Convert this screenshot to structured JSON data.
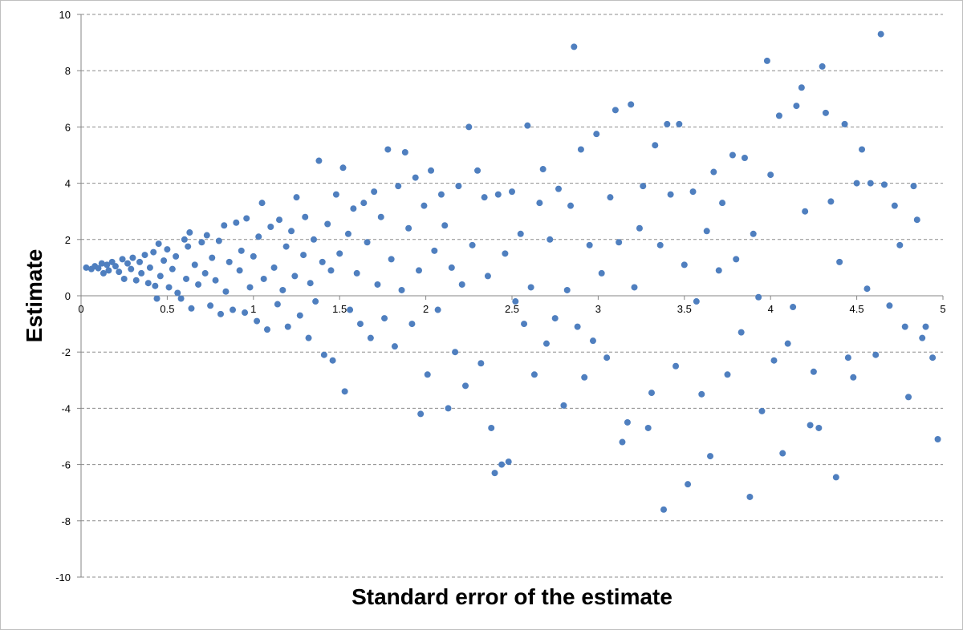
{
  "chart_data": {
    "type": "scatter",
    "title": "",
    "xlabel": "Standard error of the estimate",
    "ylabel": "Estimate",
    "xlim": [
      0,
      5
    ],
    "ylim": [
      -10,
      10
    ],
    "x_ticks": [
      0,
      0.5,
      1,
      1.5,
      2,
      2.5,
      3,
      3.5,
      4,
      4.5,
      5
    ],
    "y_ticks": [
      -10,
      -8,
      -6,
      -4,
      -2,
      0,
      2,
      4,
      6,
      8,
      10
    ],
    "grid": "horizontal dashed",
    "legend": "none",
    "colors": {
      "marker": "#4f7fbf",
      "grid": "#8c8c8c",
      "axis": "#868686"
    },
    "series": [
      {
        "marker": "circle",
        "points": [
          [
            0.03,
            1.0
          ],
          [
            0.06,
            0.95
          ],
          [
            0.08,
            1.05
          ],
          [
            0.1,
            0.98
          ],
          [
            0.12,
            1.15
          ],
          [
            0.13,
            0.8
          ],
          [
            0.15,
            1.1
          ],
          [
            0.16,
            0.9
          ],
          [
            0.18,
            1.2
          ],
          [
            0.2,
            1.05
          ],
          [
            0.22,
            0.85
          ],
          [
            0.24,
            1.3
          ],
          [
            0.25,
            0.6
          ],
          [
            0.27,
            1.15
          ],
          [
            0.29,
            0.95
          ],
          [
            0.3,
            1.35
          ],
          [
            0.32,
            0.55
          ],
          [
            0.34,
            1.2
          ],
          [
            0.35,
            0.8
          ],
          [
            0.37,
            1.45
          ],
          [
            0.39,
            0.45
          ],
          [
            0.4,
            1.0
          ],
          [
            0.42,
            1.55
          ],
          [
            0.43,
            0.35
          ],
          [
            0.44,
            -0.1
          ],
          [
            0.45,
            1.85
          ],
          [
            0.46,
            0.7
          ],
          [
            0.48,
            1.25
          ],
          [
            0.5,
            1.65
          ],
          [
            0.51,
            0.3
          ],
          [
            0.53,
            0.95
          ],
          [
            0.55,
            1.4
          ],
          [
            0.56,
            0.1
          ],
          [
            0.58,
            -0.1
          ],
          [
            0.6,
            2.0
          ],
          [
            0.61,
            0.6
          ],
          [
            0.62,
            1.75
          ],
          [
            0.63,
            2.25
          ],
          [
            0.64,
            -0.45
          ],
          [
            0.66,
            1.1
          ],
          [
            0.68,
            0.4
          ],
          [
            0.7,
            1.9
          ],
          [
            0.72,
            0.8
          ],
          [
            0.73,
            2.15
          ],
          [
            0.75,
            -0.35
          ],
          [
            0.76,
            1.35
          ],
          [
            0.78,
            0.55
          ],
          [
            0.8,
            1.95
          ],
          [
            0.81,
            -0.65
          ],
          [
            0.83,
            2.5
          ],
          [
            0.84,
            0.15
          ],
          [
            0.86,
            1.2
          ],
          [
            0.88,
            -0.5
          ],
          [
            0.9,
            2.6
          ],
          [
            0.92,
            0.9
          ],
          [
            0.93,
            1.6
          ],
          [
            0.95,
            -0.6
          ],
          [
            0.96,
            2.75
          ],
          [
            0.98,
            0.3
          ],
          [
            1.0,
            1.4
          ],
          [
            1.02,
            -0.9
          ],
          [
            1.03,
            2.1
          ],
          [
            1.05,
            3.3
          ],
          [
            1.06,
            0.6
          ],
          [
            1.08,
            -1.2
          ],
          [
            1.1,
            2.45
          ],
          [
            1.12,
            1.0
          ],
          [
            1.14,
            -0.3
          ],
          [
            1.15,
            2.7
          ],
          [
            1.17,
            0.2
          ],
          [
            1.19,
            1.75
          ],
          [
            1.2,
            -1.1
          ],
          [
            1.22,
            2.3
          ],
          [
            1.24,
            0.7
          ],
          [
            1.25,
            3.5
          ],
          [
            1.27,
            -0.7
          ],
          [
            1.29,
            1.45
          ],
          [
            1.3,
            2.8
          ],
          [
            1.32,
            -1.5
          ],
          [
            1.33,
            0.45
          ],
          [
            1.35,
            2.0
          ],
          [
            1.36,
            -0.2
          ],
          [
            1.38,
            4.8
          ],
          [
            1.4,
            1.2
          ],
          [
            1.41,
            -2.1
          ],
          [
            1.43,
            2.55
          ],
          [
            1.45,
            0.9
          ],
          [
            1.46,
            -2.3
          ],
          [
            1.48,
            3.6
          ],
          [
            1.5,
            1.5
          ],
          [
            1.52,
            4.55
          ],
          [
            1.53,
            -3.4
          ],
          [
            1.55,
            2.2
          ],
          [
            1.56,
            -0.5
          ],
          [
            1.58,
            3.1
          ],
          [
            1.6,
            0.8
          ],
          [
            1.62,
            -1.0
          ],
          [
            1.64,
            3.3
          ],
          [
            1.66,
            1.9
          ],
          [
            1.68,
            -1.5
          ],
          [
            1.7,
            3.7
          ],
          [
            1.72,
            0.4
          ],
          [
            1.74,
            2.8
          ],
          [
            1.76,
            -0.8
          ],
          [
            1.78,
            5.2
          ],
          [
            1.8,
            1.3
          ],
          [
            1.82,
            -1.8
          ],
          [
            1.84,
            3.9
          ],
          [
            1.86,
            0.2
          ],
          [
            1.88,
            5.1
          ],
          [
            1.9,
            2.4
          ],
          [
            1.92,
            -1.0
          ],
          [
            1.94,
            4.2
          ],
          [
            1.96,
            0.9
          ],
          [
            1.97,
            -4.2
          ],
          [
            1.99,
            3.2
          ],
          [
            2.01,
            -2.8
          ],
          [
            2.03,
            4.45
          ],
          [
            2.05,
            1.6
          ],
          [
            2.07,
            -0.5
          ],
          [
            2.09,
            3.6
          ],
          [
            2.11,
            2.5
          ],
          [
            2.13,
            -4.0
          ],
          [
            2.15,
            1.0
          ],
          [
            2.17,
            -2.0
          ],
          [
            2.19,
            3.9
          ],
          [
            2.21,
            0.4
          ],
          [
            2.23,
            -3.2
          ],
          [
            2.25,
            6.0
          ],
          [
            2.27,
            1.8
          ],
          [
            2.3,
            4.45
          ],
          [
            2.32,
            -2.4
          ],
          [
            2.34,
            3.5
          ],
          [
            2.36,
            0.7
          ],
          [
            2.38,
            -4.7
          ],
          [
            2.4,
            -6.3
          ],
          [
            2.42,
            3.6
          ],
          [
            2.44,
            -6.0
          ],
          [
            2.46,
            1.5
          ],
          [
            2.48,
            -5.9
          ],
          [
            2.5,
            3.7
          ],
          [
            2.52,
            -0.2
          ],
          [
            2.55,
            2.2
          ],
          [
            2.57,
            -1.0
          ],
          [
            2.59,
            6.05
          ],
          [
            2.61,
            0.3
          ],
          [
            2.63,
            -2.8
          ],
          [
            2.66,
            3.3
          ],
          [
            2.68,
            4.5
          ],
          [
            2.7,
            -1.7
          ],
          [
            2.72,
            2.0
          ],
          [
            2.75,
            -0.8
          ],
          [
            2.77,
            3.8
          ],
          [
            2.8,
            -3.9
          ],
          [
            2.82,
            0.2
          ],
          [
            2.84,
            3.2
          ],
          [
            2.86,
            8.85
          ],
          [
            2.88,
            -1.1
          ],
          [
            2.9,
            5.2
          ],
          [
            2.92,
            -2.9
          ],
          [
            2.95,
            1.8
          ],
          [
            2.97,
            -1.6
          ],
          [
            2.99,
            5.75
          ],
          [
            3.02,
            0.8
          ],
          [
            3.05,
            -2.2
          ],
          [
            3.07,
            3.5
          ],
          [
            3.1,
            6.6
          ],
          [
            3.12,
            1.9
          ],
          [
            3.14,
            -5.2
          ],
          [
            3.17,
            -4.5
          ],
          [
            3.19,
            6.8
          ],
          [
            3.21,
            0.3
          ],
          [
            3.24,
            2.4
          ],
          [
            3.26,
            3.9
          ],
          [
            3.29,
            -4.7
          ],
          [
            3.31,
            -3.45
          ],
          [
            3.33,
            5.35
          ],
          [
            3.36,
            1.8
          ],
          [
            3.38,
            -7.6
          ],
          [
            3.4,
            6.1
          ],
          [
            3.42,
            3.6
          ],
          [
            3.45,
            -2.5
          ],
          [
            3.47,
            6.1
          ],
          [
            3.5,
            1.1
          ],
          [
            3.52,
            -6.7
          ],
          [
            3.55,
            3.7
          ],
          [
            3.57,
            -0.2
          ],
          [
            3.6,
            -3.5
          ],
          [
            3.63,
            2.3
          ],
          [
            3.65,
            -5.7
          ],
          [
            3.67,
            4.4
          ],
          [
            3.7,
            0.9
          ],
          [
            3.72,
            3.3
          ],
          [
            3.75,
            -2.8
          ],
          [
            3.78,
            5.0
          ],
          [
            3.8,
            1.3
          ],
          [
            3.83,
            -1.3
          ],
          [
            3.85,
            4.9
          ],
          [
            3.88,
            -7.15
          ],
          [
            3.9,
            2.2
          ],
          [
            3.93,
            -0.05
          ],
          [
            3.95,
            -4.1
          ],
          [
            3.98,
            8.35
          ],
          [
            4.0,
            4.3
          ],
          [
            4.02,
            -2.3
          ],
          [
            4.05,
            6.4
          ],
          [
            4.07,
            -5.6
          ],
          [
            4.1,
            -1.7
          ],
          [
            4.13,
            -0.4
          ],
          [
            4.15,
            6.75
          ],
          [
            4.18,
            7.4
          ],
          [
            4.2,
            3.0
          ],
          [
            4.23,
            -4.6
          ],
          [
            4.25,
            -2.7
          ],
          [
            4.28,
            -4.7
          ],
          [
            4.3,
            8.15
          ],
          [
            4.32,
            6.5
          ],
          [
            4.35,
            3.35
          ],
          [
            4.38,
            -6.45
          ],
          [
            4.4,
            1.2
          ],
          [
            4.43,
            6.1
          ],
          [
            4.45,
            -2.2
          ],
          [
            4.48,
            -2.9
          ],
          [
            4.5,
            4.0
          ],
          [
            4.53,
            5.2
          ],
          [
            4.56,
            0.25
          ],
          [
            4.58,
            4.0
          ],
          [
            4.61,
            -2.1
          ],
          [
            4.64,
            9.3
          ],
          [
            4.66,
            3.95
          ],
          [
            4.69,
            -0.35
          ],
          [
            4.72,
            3.2
          ],
          [
            4.75,
            1.8
          ],
          [
            4.78,
            -1.1
          ],
          [
            4.8,
            -3.6
          ],
          [
            4.83,
            3.9
          ],
          [
            4.85,
            2.7
          ],
          [
            4.88,
            -1.5
          ],
          [
            4.9,
            -1.1
          ],
          [
            4.94,
            -2.2
          ],
          [
            4.97,
            -5.1
          ]
        ]
      }
    ]
  }
}
